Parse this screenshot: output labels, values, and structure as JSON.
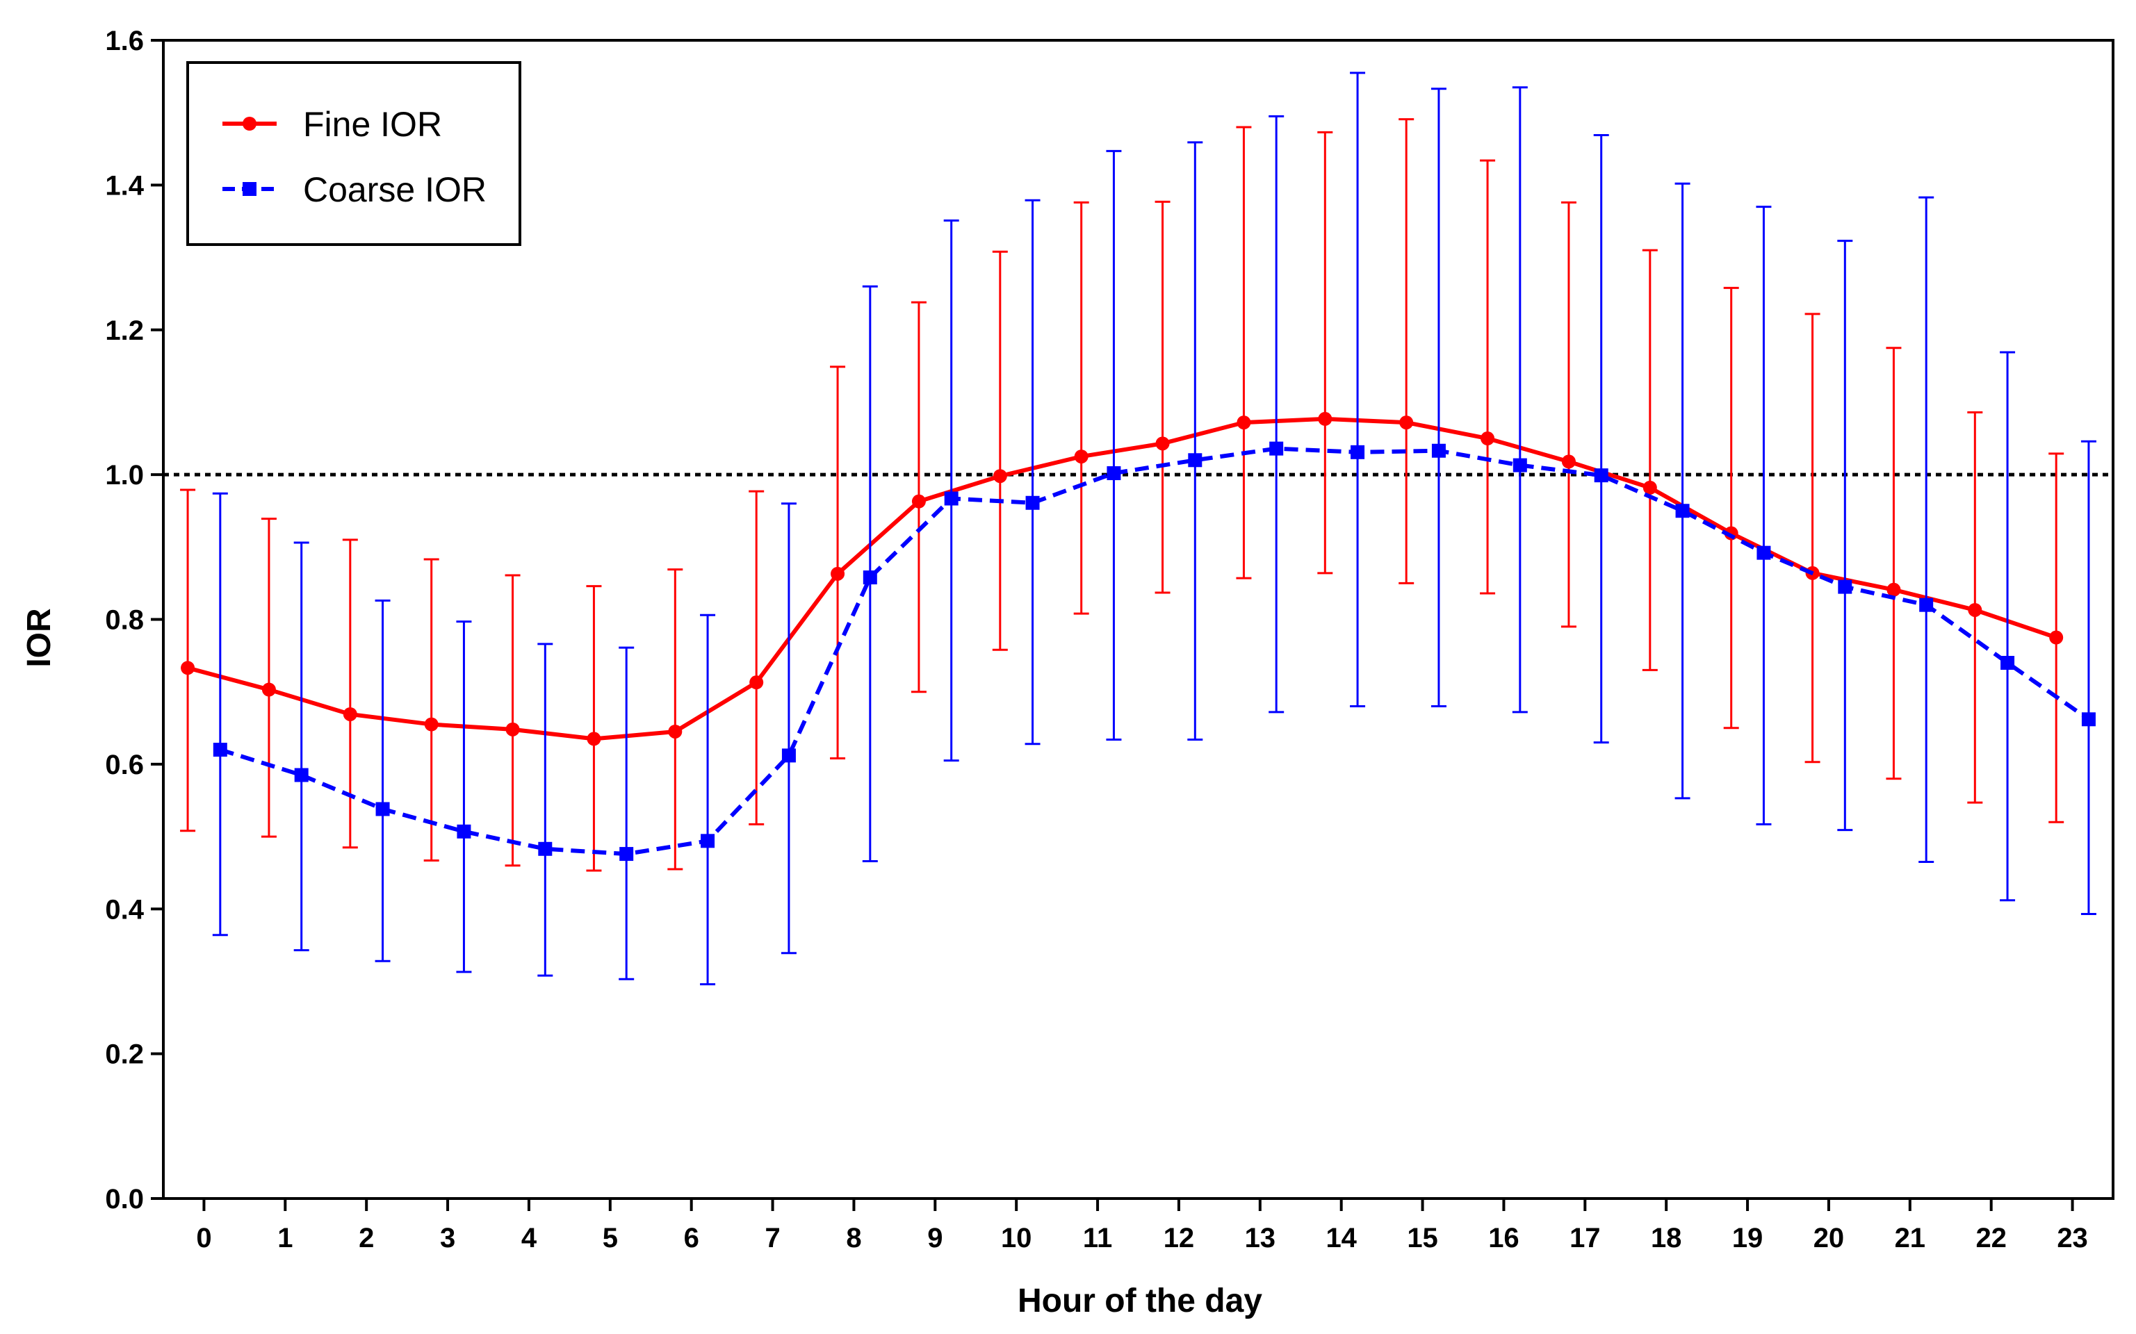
{
  "chart_data": {
    "type": "line",
    "title": "",
    "xlabel": "Hour of the day",
    "ylabel": "IOR",
    "x": [
      0,
      1,
      2,
      3,
      4,
      5,
      6,
      7,
      8,
      9,
      10,
      11,
      12,
      13,
      14,
      15,
      16,
      17,
      18,
      19,
      20,
      21,
      22,
      23
    ],
    "xlim": [
      -0.5,
      23.5
    ],
    "ylim": [
      0,
      1.6
    ],
    "yticks": [
      0.0,
      0.2,
      0.4,
      0.6,
      0.8,
      1.0,
      1.2,
      1.4,
      1.6
    ],
    "ytick_labels": [
      "0.0",
      "0.2",
      "0.4",
      "0.6",
      "0.8",
      "1.0",
      "1.2",
      "1.4",
      "1.6"
    ],
    "xtick_labels": [
      "0",
      "1",
      "2",
      "3",
      "4",
      "5",
      "6",
      "7",
      "8",
      "9",
      "10",
      "11",
      "12",
      "13",
      "14",
      "15",
      "16",
      "17",
      "18",
      "19",
      "20",
      "21",
      "22",
      "23"
    ],
    "reference_line": 1.0,
    "legend_position": "top-left",
    "series": [
      {
        "name": "Fine IOR",
        "color": "#ff0000",
        "line_style": "solid",
        "marker": "circle",
        "values": [
          0.733,
          0.703,
          0.669,
          0.655,
          0.648,
          0.635,
          0.645,
          0.713,
          0.863,
          0.963,
          0.998,
          1.025,
          1.043,
          1.072,
          1.077,
          1.072,
          1.05,
          1.018,
          0.982,
          0.919,
          0.864,
          0.841,
          0.813,
          0.775
        ],
        "upper": [
          0.979,
          0.939,
          0.91,
          0.883,
          0.861,
          0.846,
          0.869,
          0.977,
          1.149,
          1.238,
          1.308,
          1.376,
          1.377,
          1.48,
          1.473,
          1.491,
          1.434,
          1.376,
          1.31,
          1.258,
          1.222,
          1.175,
          1.086,
          1.029
        ],
        "lower": [
          0.508,
          0.5,
          0.485,
          0.467,
          0.46,
          0.453,
          0.455,
          0.517,
          0.608,
          0.7,
          0.758,
          0.808,
          0.837,
          0.857,
          0.864,
          0.85,
          0.836,
          0.79,
          0.73,
          0.65,
          0.603,
          0.58,
          0.547,
          0.52
        ]
      },
      {
        "name": "Coarse IOR",
        "color": "#0000ff",
        "line_style": "dashed",
        "marker": "square",
        "values": [
          0.62,
          0.585,
          0.538,
          0.507,
          0.483,
          0.476,
          0.494,
          0.612,
          0.858,
          0.967,
          0.961,
          1.002,
          1.02,
          1.036,
          1.031,
          1.033,
          1.013,
          0.999,
          0.95,
          0.892,
          0.845,
          0.82,
          0.74,
          0.662
        ],
        "upper": [
          0.974,
          0.906,
          0.826,
          0.797,
          0.766,
          0.761,
          0.806,
          0.96,
          1.26,
          1.351,
          1.379,
          1.447,
          1.459,
          1.495,
          1.555,
          1.533,
          1.535,
          1.469,
          1.402,
          1.37,
          1.323,
          1.383,
          1.169,
          1.046
        ],
        "lower": [
          0.364,
          0.343,
          0.328,
          0.313,
          0.308,
          0.303,
          0.296,
          0.339,
          0.466,
          0.605,
          0.628,
          0.634,
          0.634,
          0.672,
          0.68,
          0.68,
          0.672,
          0.63,
          0.553,
          0.517,
          0.509,
          0.465,
          0.412,
          0.393
        ]
      }
    ]
  }
}
